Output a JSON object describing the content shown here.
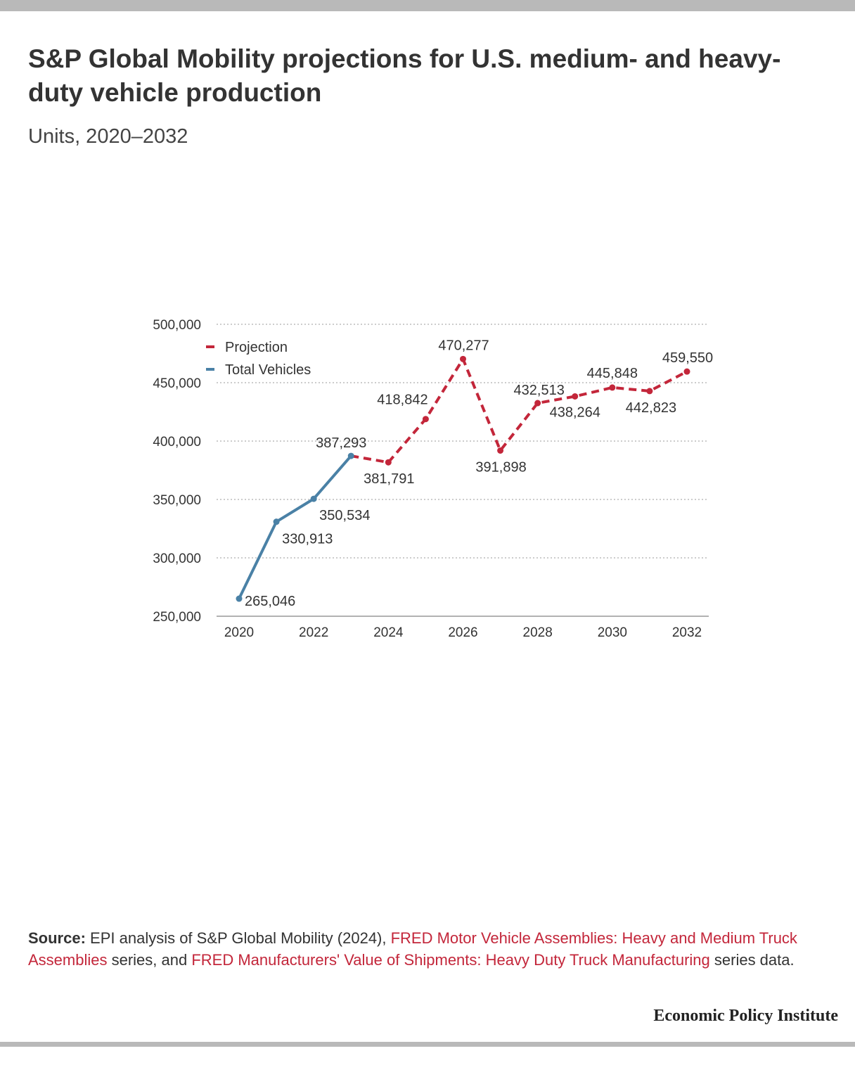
{
  "title": "S&P Global Mobility projections for U.S. medium- and heavy-duty vehicle production",
  "subtitle": "Units, 2020–2032",
  "colors": {
    "projection": "#c3263a",
    "total": "#4a81a6",
    "link": "#c3263a"
  },
  "chart_data": {
    "type": "line",
    "ylim": [
      250000,
      500000
    ],
    "xlim": [
      2020,
      2032
    ],
    "y_ticks": [
      {
        "value": 500000,
        "label": "500,000"
      },
      {
        "value": 450000,
        "label": "450,000"
      },
      {
        "value": 400000,
        "label": "400,000"
      },
      {
        "value": 350000,
        "label": "350,000"
      },
      {
        "value": 300000,
        "label": "300,000"
      },
      {
        "value": 250000,
        "label": "250,000"
      }
    ],
    "x_ticks": [
      "2020",
      "2022",
      "2024",
      "2026",
      "2028",
      "2030",
      "2032"
    ],
    "grid": true,
    "legend_position": "top-left",
    "series": [
      {
        "name": "Projection",
        "style": "dashed",
        "points": [
          {
            "x": 2023,
            "y": 387293,
            "label": ""
          },
          {
            "x": 2024,
            "y": 381791,
            "label": "381,791"
          },
          {
            "x": 2025,
            "y": 418842,
            "label": "418,842"
          },
          {
            "x": 2026,
            "y": 470277,
            "label": "470,277"
          },
          {
            "x": 2027,
            "y": 391898,
            "label": "391,898"
          },
          {
            "x": 2028,
            "y": 432513,
            "label": "432,513"
          },
          {
            "x": 2029,
            "y": 438264,
            "label": "438,264"
          },
          {
            "x": 2030,
            "y": 445848,
            "label": "445,848"
          },
          {
            "x": 2031,
            "y": 442823,
            "label": "442,823"
          },
          {
            "x": 2032,
            "y": 459550,
            "label": "459,550"
          }
        ]
      },
      {
        "name": "Total Vehicles",
        "style": "solid",
        "points": [
          {
            "x": 2020,
            "y": 265046,
            "label": "265,046"
          },
          {
            "x": 2021,
            "y": 330913,
            "label": "330,913"
          },
          {
            "x": 2022,
            "y": 350534,
            "label": "350,534"
          },
          {
            "x": 2023,
            "y": 387293,
            "label": "387,293"
          }
        ]
      }
    ]
  },
  "source": {
    "label": "Source:",
    "text1": " EPI analysis of S&P Global Mobility (2024), ",
    "link1": "FRED Motor Vehicle Assemblies: Heavy and Medium Truck Assemblies",
    "text2": " series, and ",
    "link2": "FRED Manufacturers' Value of Shipments: Heavy Duty Truck Manufacturing",
    "text3": " series data."
  },
  "brand": "Economic Policy Institute"
}
